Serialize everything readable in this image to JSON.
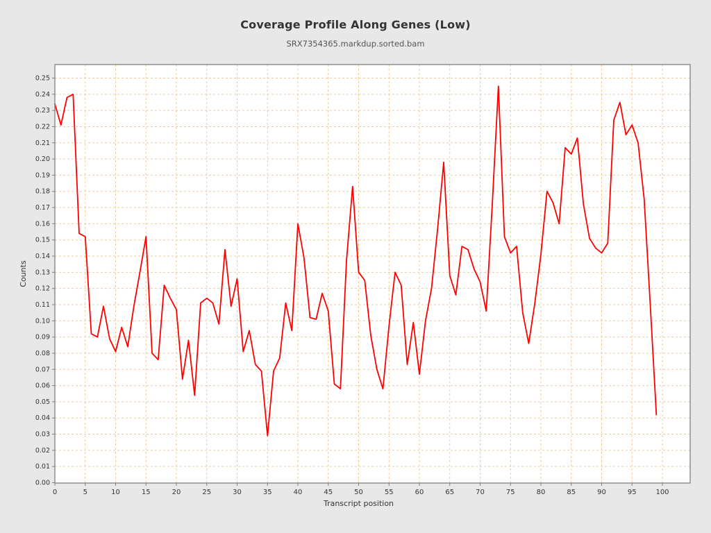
{
  "title": "Coverage Profile Along Genes (Low)",
  "subtitle": "SRX7354365.markdup.sorted.bam",
  "colors": {
    "page_background": "#e8e8e8",
    "plot_background": "#ffffff",
    "grid": "#f3c992",
    "axis": "#808080",
    "tick_label": "#333333",
    "axis_title": "#333333",
    "series": "#fe0000"
  },
  "chart_data": {
    "type": "line",
    "title": "Coverage Profile Along Genes (Low)",
    "subtitle": "SRX7354365.markdup.sorted.bam",
    "xlabel": "Transcript position",
    "ylabel": "Counts",
    "xlim": [
      0,
      104.6
    ],
    "ylim": [
      0,
      0.258
    ],
    "x_ticks": [
      0,
      5,
      10,
      15,
      20,
      25,
      30,
      35,
      40,
      45,
      50,
      55,
      60,
      65,
      70,
      75,
      80,
      85,
      90,
      95,
      100
    ],
    "y_ticks": [
      0.0,
      0.01,
      0.02,
      0.03,
      0.04,
      0.05,
      0.06,
      0.07,
      0.08,
      0.09,
      0.1,
      0.11,
      0.12,
      0.13,
      0.14,
      0.15,
      0.16,
      0.17,
      0.18,
      0.19,
      0.2,
      0.21,
      0.22,
      0.23,
      0.24,
      0.25
    ],
    "grid": "dashed orange, both axes",
    "legend": "none",
    "x": [
      0,
      1,
      2,
      3,
      4,
      5,
      6,
      7,
      8,
      9,
      10,
      11,
      12,
      13,
      14,
      15,
      16,
      17,
      18,
      19,
      20,
      21,
      22,
      23,
      24,
      25,
      26,
      27,
      28,
      29,
      30,
      31,
      32,
      33,
      34,
      35,
      36,
      37,
      38,
      39,
      40,
      41,
      42,
      43,
      44,
      45,
      46,
      47,
      48,
      49,
      50,
      51,
      52,
      53,
      54,
      55,
      56,
      57,
      58,
      59,
      60,
      61,
      62,
      63,
      64,
      65,
      66,
      67,
      68,
      69,
      70,
      71,
      72,
      73,
      74,
      75,
      76,
      77,
      78,
      79,
      80,
      81,
      82,
      83,
      84,
      85,
      86,
      87,
      88,
      89,
      90,
      91,
      92,
      93,
      94,
      95,
      96,
      97,
      98,
      99
    ],
    "series": [
      {
        "name": "coverage",
        "values": [
          0.234,
          0.221,
          0.238,
          0.24,
          0.154,
          0.152,
          0.092,
          0.09,
          0.109,
          0.089,
          0.081,
          0.096,
          0.084,
          0.109,
          0.13,
          0.152,
          0.08,
          0.076,
          0.122,
          0.114,
          0.107,
          0.064,
          0.088,
          0.054,
          0.111,
          0.114,
          0.111,
          0.098,
          0.144,
          0.109,
          0.126,
          0.081,
          0.094,
          0.073,
          0.069,
          0.029,
          0.069,
          0.077,
          0.111,
          0.094,
          0.16,
          0.139,
          0.102,
          0.101,
          0.117,
          0.106,
          0.061,
          0.058,
          0.137,
          0.183,
          0.13,
          0.125,
          0.091,
          0.07,
          0.058,
          0.097,
          0.13,
          0.122,
          0.073,
          0.099,
          0.067,
          0.1,
          0.12,
          0.157,
          0.198,
          0.128,
          0.116,
          0.146,
          0.144,
          0.132,
          0.124,
          0.106,
          0.172,
          0.245,
          0.152,
          0.142,
          0.146,
          0.105,
          0.086,
          0.111,
          0.141,
          0.18,
          0.173,
          0.16,
          0.207,
          0.203,
          0.213,
          0.172,
          0.151,
          0.145,
          0.142,
          0.148,
          0.224,
          0.235,
          0.215,
          0.221,
          0.21,
          0.175,
          0.11,
          0.042
        ]
      }
    ]
  }
}
